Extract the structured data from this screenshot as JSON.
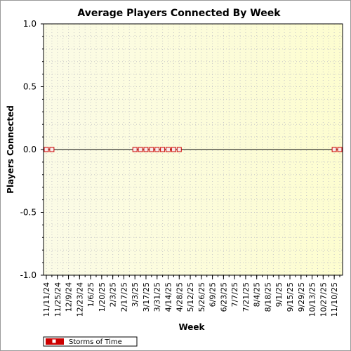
{
  "chart_data": {
    "type": "line",
    "title": "Average Players Connected By Week",
    "xlabel": "Week",
    "ylabel": "Players Connected",
    "ylim": [
      -1.0,
      1.0
    ],
    "yticks": [
      "1.0",
      "0.5",
      "0.0",
      "-0.5",
      "-1.0"
    ],
    "x_tick_labels": [
      "11/11/24",
      "11/25/24",
      "12/9/24",
      "12/23/24",
      "1/6/25",
      "1/20/25",
      "2/3/25",
      "2/17/25",
      "3/3/25",
      "3/17/25",
      "3/31/25",
      "4/14/25",
      "4/28/25",
      "5/12/25",
      "5/26/25",
      "6/9/25",
      "6/23/25",
      "7/7/25",
      "7/21/25",
      "8/4/25",
      "8/18/25",
      "9/1/25",
      "9/15/25",
      "9/29/25",
      "10/13/25",
      "10/27/25",
      "11/10/25"
    ],
    "grid": true,
    "legend_position": "bottom-left",
    "series": [
      {
        "name": "Storms of Time",
        "color": "#cc0000",
        "points": [
          {
            "x": "11/11/24",
            "y": 0.0
          },
          {
            "x": "11/18/24",
            "y": 0.0
          },
          {
            "x": "3/3/25",
            "y": 0.0
          },
          {
            "x": "3/10/25",
            "y": 0.0
          },
          {
            "x": "3/17/25",
            "y": 0.0
          },
          {
            "x": "3/24/25",
            "y": 0.0
          },
          {
            "x": "3/31/25",
            "y": 0.0
          },
          {
            "x": "4/7/25",
            "y": 0.0
          },
          {
            "x": "4/14/25",
            "y": 0.0
          },
          {
            "x": "4/21/25",
            "y": 0.0
          },
          {
            "x": "4/28/25",
            "y": 0.0
          },
          {
            "x": "11/10/25",
            "y": 0.0
          },
          {
            "x": "11/17/25",
            "y": 0.0
          }
        ]
      }
    ]
  }
}
